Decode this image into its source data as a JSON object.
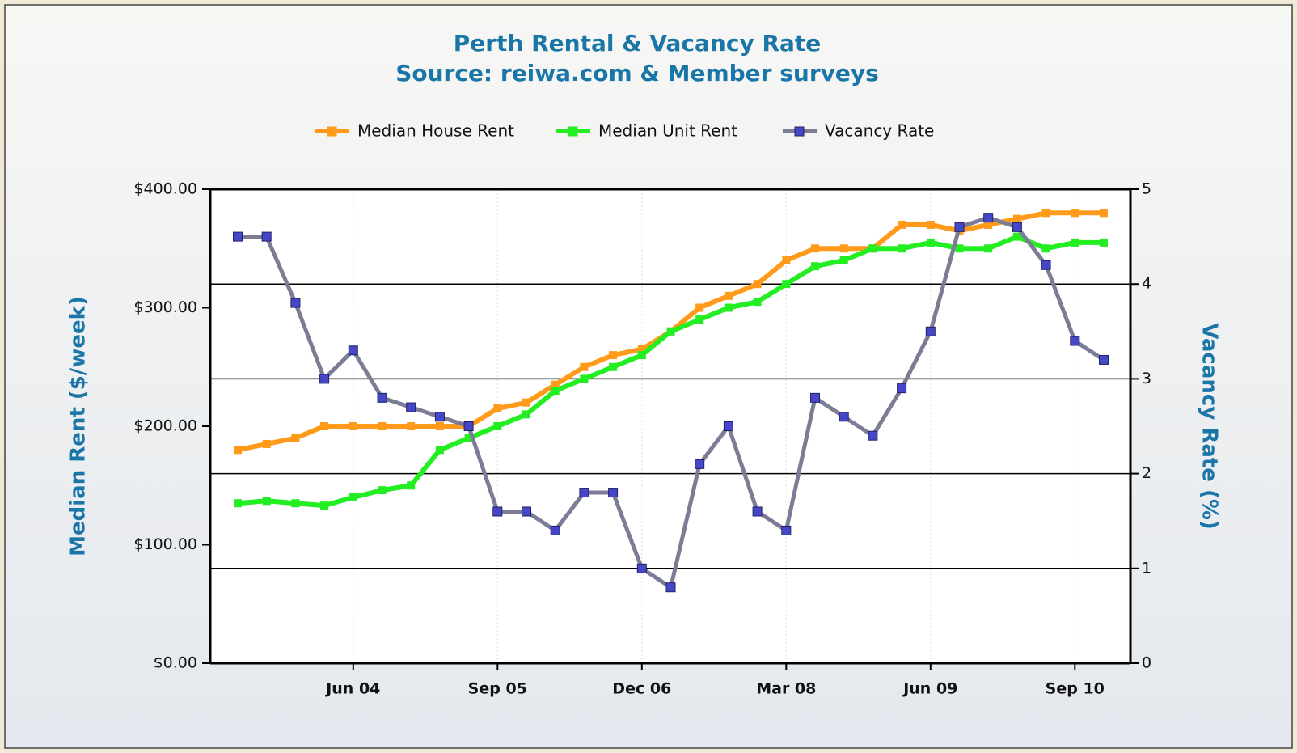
{
  "chart_data": {
    "type": "line",
    "title": "Perth Rental & Vacancy Rate",
    "subtitle": "Source: reiwa.com & Member surveys",
    "y_label": "Median Rent ($/week)",
    "y2_label": "Vacancy Rate (%)",
    "categories": [
      null,
      null,
      null,
      null,
      "Jun 04",
      null,
      null,
      null,
      null,
      "Sep 05",
      null,
      null,
      null,
      null,
      "Dec 06",
      null,
      null,
      null,
      null,
      "Mar 08",
      null,
      null,
      null,
      null,
      "Jun 09",
      null,
      null,
      null,
      null,
      "Sep 10",
      null
    ],
    "series": [
      {
        "name": "Median House Rent",
        "color": "#ff9a1a",
        "values": [
          180,
          185,
          190,
          200,
          200,
          200,
          200,
          200,
          200,
          215,
          220,
          235,
          250,
          260,
          265,
          280,
          300,
          310,
          320,
          340,
          350,
          350,
          350,
          370,
          370,
          365,
          370,
          375,
          380,
          380,
          380
        ]
      },
      {
        "name": "Median Unit Rent",
        "color": "#22ee22",
        "values": [
          135,
          137,
          135,
          133,
          140,
          146,
          150,
          180,
          190,
          200,
          210,
          230,
          240,
          250,
          260,
          280,
          290,
          300,
          305,
          320,
          335,
          340,
          350,
          350,
          355,
          350,
          350,
          360,
          350,
          355,
          355
        ]
      },
      {
        "name": "Vacancy Rate",
        "color": "#7c7c96",
        "marker_color": "#4646c8",
        "axis": "y2",
        "values": [
          4.5,
          4.5,
          3.8,
          3.0,
          3.3,
          2.8,
          2.7,
          2.6,
          2.5,
          1.6,
          1.6,
          1.4,
          1.8,
          1.8,
          1.0,
          0.8,
          2.1,
          2.5,
          1.6,
          1.4,
          2.8,
          2.6,
          2.4,
          2.9,
          3.5,
          4.6,
          4.7,
          4.6,
          4.2,
          3.4,
          3.2
        ]
      }
    ],
    "ylim": [
      0,
      400
    ],
    "yticks": [
      {
        "value": 0,
        "label": "$0.00"
      },
      {
        "value": 100,
        "label": "$100.00"
      },
      {
        "value": 200,
        "label": "$200.00"
      },
      {
        "value": 300,
        "label": "$300.00"
      },
      {
        "value": 400,
        "label": "$400.00"
      }
    ],
    "y2lim": [
      0,
      5
    ],
    "y2ticks": [
      0,
      1,
      2,
      3,
      4,
      5
    ],
    "grid": true,
    "legend": "top"
  }
}
